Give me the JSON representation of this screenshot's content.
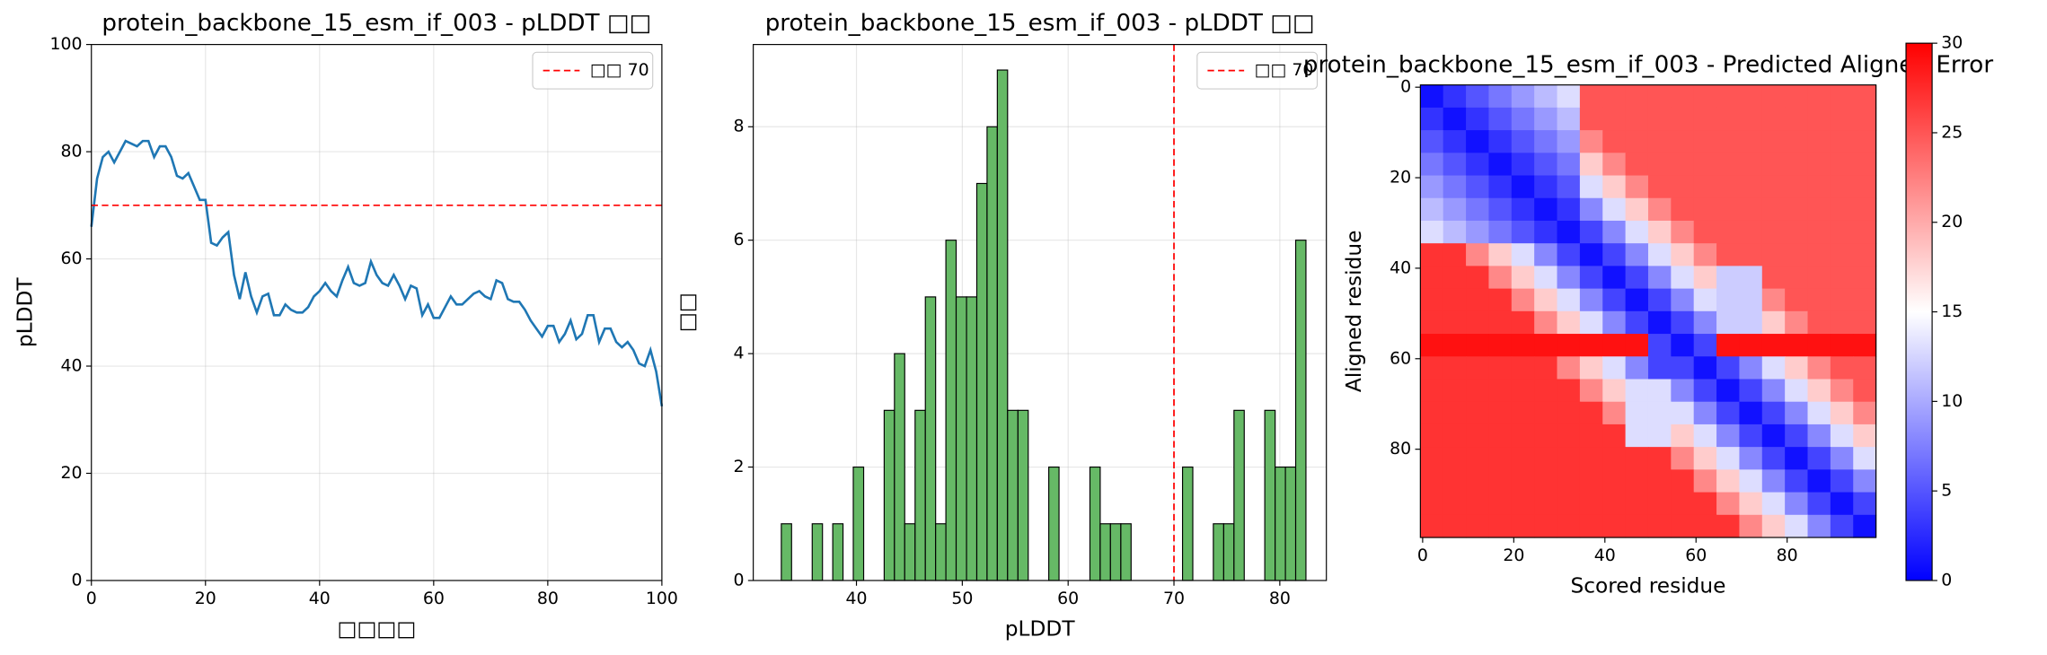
{
  "chart_data": [
    {
      "type": "line",
      "title": "protein_backbone_15_esm_if_003 - pLDDT □□",
      "x_label": "□□□□",
      "y_label": "pLDDT",
      "x": [
        0,
        1,
        2,
        3,
        4,
        5,
        6,
        7,
        8,
        9,
        10,
        11,
        12,
        13,
        14,
        15,
        16,
        17,
        18,
        19,
        20,
        21,
        22,
        23,
        24,
        25,
        26,
        27,
        28,
        29,
        30,
        31,
        32,
        33,
        34,
        35,
        36,
        37,
        38,
        39,
        40,
        41,
        42,
        43,
        44,
        45,
        46,
        47,
        48,
        49,
        50,
        51,
        52,
        53,
        54,
        55,
        56,
        57,
        58,
        59,
        60,
        61,
        62,
        63,
        64,
        65,
        66,
        67,
        68,
        69,
        70,
        71,
        72,
        73,
        74,
        75,
        76,
        77,
        78,
        79,
        80,
        81,
        82,
        83,
        84,
        85,
        86,
        87,
        88,
        89,
        90,
        91,
        92,
        93,
        94,
        95,
        96,
        97,
        98,
        99,
        100
      ],
      "values": [
        66,
        75,
        79,
        80,
        78,
        80,
        82,
        81.5,
        81,
        82,
        82,
        79,
        81,
        81,
        79,
        75.5,
        75,
        76,
        73.5,
        71,
        71,
        63,
        62.5,
        64,
        65,
        57,
        52.5,
        57.5,
        53,
        50,
        53,
        53.5,
        49.5,
        49.5,
        51.5,
        50.5,
        50,
        50,
        51,
        53,
        54,
        55.5,
        54,
        53,
        56,
        58.5,
        55.5,
        55,
        55.5,
        59.5,
        57,
        55.5,
        55,
        57,
        55,
        52.5,
        55,
        54.5,
        49.5,
        51.5,
        49,
        49,
        51,
        53,
        51.5,
        51.5,
        52.5,
        53.5,
        54,
        53,
        52.5,
        56,
        55.5,
        52.5,
        52,
        52,
        50.5,
        48.5,
        47,
        45.5,
        47.5,
        47.5,
        44.5,
        46,
        48.5,
        45,
        46,
        49.5,
        49.5,
        44.5,
        47,
        47,
        44.5,
        43.5,
        44.5,
        43,
        40.5,
        40,
        43,
        39,
        32.5
      ],
      "color": "#1f77b4",
      "reference_line": {
        "value": 70,
        "label": "□□ 70",
        "color": "#ff0000"
      },
      "legend": "upper right",
      "xlim": [
        0,
        100
      ],
      "ylim": [
        0,
        100
      ],
      "xticks": [
        0,
        20,
        40,
        60,
        80,
        100
      ],
      "yticks": [
        0,
        20,
        40,
        60,
        80,
        100
      ],
      "grid": true
    },
    {
      "type": "histogram",
      "title": "protein_backbone_15_esm_if_003 - pLDDT □□",
      "x_label": "pLDDT",
      "y_label": "□□",
      "bins": [
        32.9,
        33.87,
        34.84,
        35.82,
        36.79,
        37.76,
        38.73,
        39.7,
        40.68,
        41.65,
        42.62,
        43.59,
        44.56,
        45.54,
        46.51,
        47.48,
        48.45,
        49.42,
        50.4,
        51.37,
        52.34,
        53.31,
        54.28,
        55.26,
        56.23,
        57.2,
        58.17,
        59.14,
        60.12,
        61.09,
        62.06,
        63.03,
        64.0,
        64.98,
        65.95,
        66.92,
        67.89,
        68.86,
        69.84,
        70.81,
        71.78,
        72.75,
        73.72,
        74.7,
        75.67,
        76.64,
        77.61,
        78.58,
        79.56,
        80.53,
        81.5,
        82.47
      ],
      "values": [
        1,
        0,
        0,
        1,
        0,
        1,
        0,
        2,
        0,
        0,
        3,
        4,
        1,
        3,
        5,
        1,
        6,
        5,
        5,
        7,
        8,
        9,
        3,
        3,
        0,
        0,
        2,
        0,
        0,
        0,
        2,
        1,
        1,
        1,
        0,
        0,
        0,
        0,
        0,
        2,
        0,
        0,
        1,
        1,
        3,
        0,
        0,
        3,
        2,
        2,
        6
      ],
      "color": "#66b966",
      "reference_line": {
        "value": 70,
        "label": "□□ 70",
        "color": "#ff0000"
      },
      "legend": "upper right",
      "xlim": [
        30.25,
        84.4
      ],
      "ylim": [
        0,
        9.45
      ],
      "xticks": [
        40,
        50,
        60,
        70,
        80
      ],
      "yticks": [
        0,
        2,
        4,
        6,
        8
      ],
      "grid": true
    },
    {
      "type": "heatmap",
      "title": "protein_backbone_15_esm_if_003 - Predicted Aligned Error",
      "x_label": "Scored residue",
      "y_label": "Aligned residue",
      "values": [
        [
          1,
          3,
          5,
          7,
          9,
          11,
          13,
          25,
          25,
          25,
          25,
          25,
          25,
          25,
          25,
          25,
          25,
          25,
          25,
          25
        ],
        [
          3,
          1,
          3,
          5,
          7,
          9,
          11,
          25,
          25,
          25,
          25,
          25,
          25,
          25,
          25,
          25,
          25,
          25,
          25,
          25
        ],
        [
          5,
          3,
          1,
          3,
          5,
          7,
          9,
          22,
          25,
          25,
          25,
          25,
          25,
          25,
          25,
          25,
          25,
          25,
          25,
          25
        ],
        [
          7,
          5,
          3,
          1,
          3,
          5,
          7,
          18,
          22,
          25,
          25,
          25,
          25,
          25,
          25,
          25,
          25,
          25,
          25,
          25
        ],
        [
          9,
          7,
          5,
          3,
          1,
          3,
          5,
          13,
          18,
          22,
          25,
          25,
          25,
          25,
          25,
          25,
          25,
          25,
          25,
          25
        ],
        [
          11,
          9,
          7,
          5,
          3,
          1,
          3,
          8,
          13,
          18,
          22,
          25,
          25,
          25,
          25,
          25,
          25,
          25,
          25,
          25
        ],
        [
          13,
          11,
          9,
          7,
          5,
          3,
          1,
          4,
          8,
          13,
          18,
          22,
          25,
          25,
          25,
          25,
          25,
          25,
          25,
          25
        ],
        [
          27,
          27,
          22,
          18,
          13,
          8,
          4,
          1,
          4,
          8,
          13,
          18,
          22,
          25,
          25,
          25,
          25,
          25,
          25,
          25
        ],
        [
          27,
          27,
          27,
          22,
          18,
          13,
          8,
          4,
          1,
          4,
          8,
          13,
          18,
          12,
          12,
          25,
          25,
          25,
          25,
          25
        ],
        [
          27,
          27,
          27,
          27,
          22,
          18,
          13,
          8,
          4,
          1,
          4,
          8,
          13,
          12,
          12,
          22,
          25,
          25,
          25,
          25
        ],
        [
          27,
          27,
          27,
          27,
          27,
          22,
          18,
          13,
          8,
          4,
          1,
          4,
          8,
          12,
          12,
          18,
          22,
          25,
          25,
          25
        ],
        [
          29,
          29,
          29,
          29,
          29,
          29,
          29,
          29,
          29,
          29,
          4,
          1,
          4,
          29,
          29,
          29,
          29,
          29,
          29,
          29
        ],
        [
          27,
          27,
          27,
          27,
          27,
          27,
          22,
          18,
          13,
          8,
          4,
          4,
          1,
          4,
          8,
          13,
          18,
          22,
          25,
          25
        ],
        [
          27,
          27,
          27,
          27,
          27,
          27,
          27,
          22,
          18,
          13,
          13,
          8,
          4,
          1,
          4,
          8,
          13,
          18,
          22,
          25
        ],
        [
          27,
          27,
          27,
          27,
          27,
          27,
          27,
          27,
          22,
          13,
          13,
          13,
          8,
          4,
          1,
          4,
          8,
          13,
          18,
          22
        ],
        [
          27,
          27,
          27,
          27,
          27,
          27,
          27,
          27,
          27,
          13,
          13,
          18,
          13,
          8,
          4,
          1,
          4,
          8,
          13,
          18
        ],
        [
          27,
          27,
          27,
          27,
          27,
          27,
          27,
          27,
          27,
          27,
          27,
          22,
          18,
          13,
          8,
          4,
          1,
          4,
          8,
          13
        ],
        [
          27,
          27,
          27,
          27,
          27,
          27,
          27,
          27,
          27,
          27,
          27,
          27,
          22,
          18,
          13,
          8,
          4,
          1,
          4,
          8
        ],
        [
          27,
          27,
          27,
          27,
          27,
          27,
          27,
          27,
          27,
          27,
          27,
          27,
          27,
          22,
          18,
          13,
          8,
          4,
          1,
          4
        ],
        [
          27,
          27,
          27,
          27,
          27,
          27,
          27,
          27,
          27,
          27,
          27,
          27,
          27,
          27,
          22,
          18,
          13,
          8,
          4,
          1
        ]
      ],
      "colormap": "bwr",
      "clim": [
        0,
        30
      ],
      "colorbar_ticks": [
        0,
        5,
        10,
        15,
        20,
        25,
        30
      ],
      "xlim": [
        -0.5,
        99.5
      ],
      "ylim": [
        99.5,
        -0.5
      ],
      "xticks": [
        0,
        20,
        40,
        60,
        80
      ],
      "yticks": [
        0,
        20,
        40,
        60,
        80
      ],
      "grid": false
    }
  ]
}
